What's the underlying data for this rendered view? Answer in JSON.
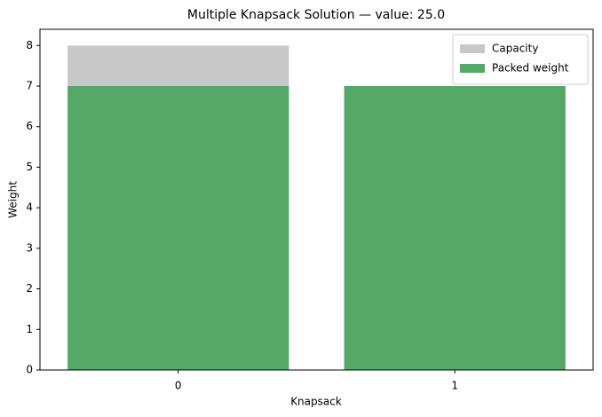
{
  "chart_data": {
    "type": "bar",
    "title": "Multiple Knapsack Solution — value: 25.0",
    "xlabel": "Knapsack",
    "ylabel": "Weight",
    "categories": [
      "0",
      "1"
    ],
    "series": [
      {
        "name": "Capacity",
        "color": "#c8c8c8",
        "values": [
          8,
          7
        ]
      },
      {
        "name": "Packed weight",
        "color": "#55a868",
        "values": [
          7,
          7
        ]
      }
    ],
    "ylim": [
      0,
      8.4
    ],
    "yticks": [
      0,
      1,
      2,
      3,
      4,
      5,
      6,
      7,
      8
    ],
    "legend": "upper-right"
  }
}
